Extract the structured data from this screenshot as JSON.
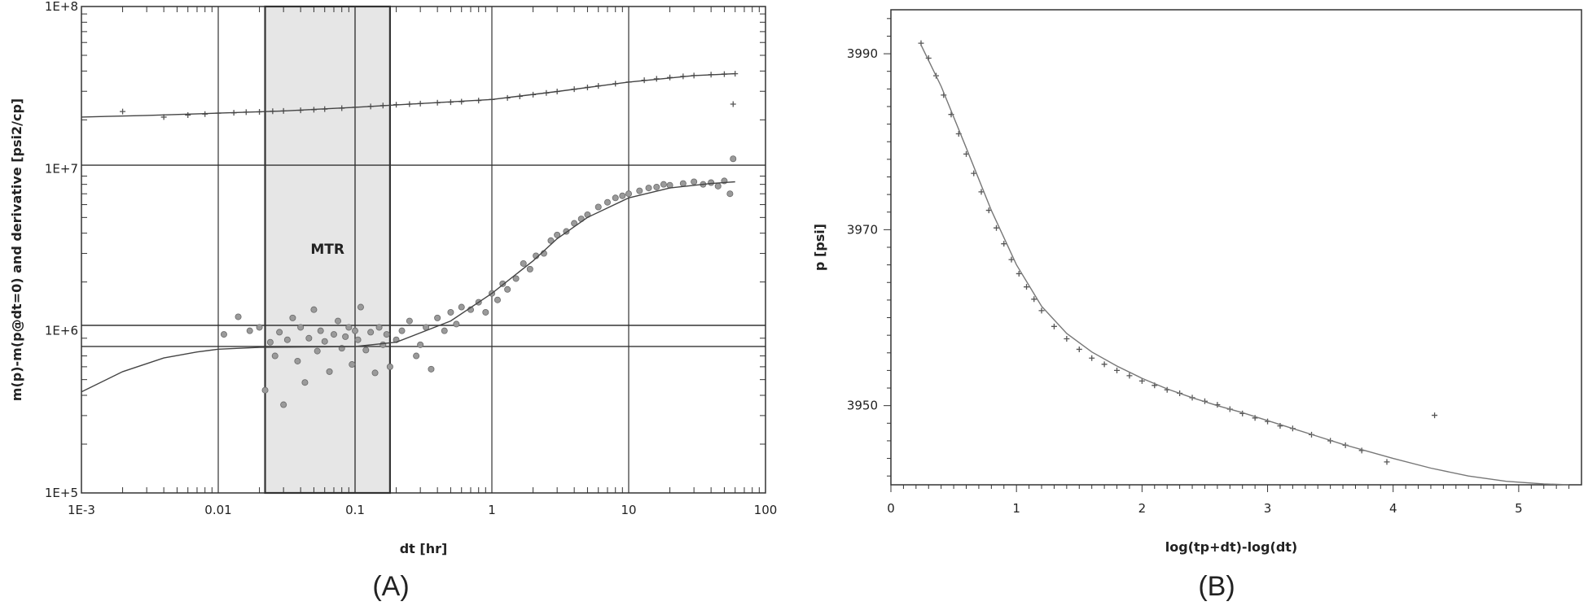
{
  "chart_data": [
    {
      "panel_label": "(A)",
      "type": "scatter",
      "x_scale": "log",
      "y_scale": "log",
      "xlabel": "dt [hr]",
      "ylabel": "m(p)-m(p@dt=0) and derivative [psi2/cp]",
      "xlim": [
        0.001,
        100
      ],
      "ylim": [
        100000,
        100000000
      ],
      "x_ticks": [
        {
          "value": 0.001,
          "label": "1E-3"
        },
        {
          "value": 0.01,
          "label": "0.01"
        },
        {
          "value": 0.1,
          "label": "0.1"
        },
        {
          "value": 1,
          "label": "1"
        },
        {
          "value": 10,
          "label": "10"
        },
        {
          "value": 100,
          "label": "100"
        }
      ],
      "y_ticks": [
        {
          "value": 100000,
          "label": "1E+5"
        },
        {
          "value": 1000000,
          "label": "1E+6"
        },
        {
          "value": 10000000,
          "label": "1E+7"
        },
        {
          "value": 100000000,
          "label": "1E+8"
        }
      ],
      "grid": true,
      "shaded_region": {
        "label": "MTR",
        "x_from": 0.022,
        "x_to": 0.18
      },
      "horizontal_lines": [
        10500000,
        1080000,
        800000
      ],
      "series": [
        {
          "marker": "plus",
          "points": [
            [
              0.002,
              22500000
            ],
            [
              0.004,
              20800000
            ],
            [
              0.006,
              21400000
            ],
            [
              0.008,
              21700000
            ],
            [
              0.01,
              22000000
            ],
            [
              0.013,
              22100000
            ],
            [
              0.016,
              22300000
            ],
            [
              0.02,
              22400000
            ],
            [
              0.025,
              22600000
            ],
            [
              0.03,
              22700000
            ],
            [
              0.04,
              22900000
            ],
            [
              0.05,
              23100000
            ],
            [
              0.06,
              23300000
            ],
            [
              0.08,
              23600000
            ],
            [
              0.1,
              23900000
            ],
            [
              0.13,
              24200000
            ],
            [
              0.16,
              24500000
            ],
            [
              0.2,
              24800000
            ],
            [
              0.25,
              25000000
            ],
            [
              0.3,
              25200000
            ],
            [
              0.4,
              25500000
            ],
            [
              0.5,
              25700000
            ],
            [
              0.6,
              25900000
            ],
            [
              0.8,
              26300000
            ],
            [
              1,
              26700000
            ],
            [
              1.3,
              27300000
            ],
            [
              1.6,
              27900000
            ],
            [
              2,
              28600000
            ],
            [
              2.5,
              29300000
            ],
            [
              3,
              29900000
            ],
            [
              4,
              30900000
            ],
            [
              5,
              31700000
            ],
            [
              6,
              32400000
            ],
            [
              8,
              33400000
            ],
            [
              10,
              34200000
            ],
            [
              13,
              35100000
            ],
            [
              16,
              35800000
            ],
            [
              20,
              36500000
            ],
            [
              25,
              37100000
            ],
            [
              30,
              37500000
            ],
            [
              40,
              38000000
            ],
            [
              50,
              38300000
            ],
            [
              60,
              38500000
            ],
            [
              58,
              25000000
            ]
          ]
        },
        {
          "marker": "plus",
          "fit_line": true,
          "points": [
            [
              0.001,
              20800000
            ],
            [
              0.003,
              21300000
            ],
            [
              0.01,
              22000000
            ],
            [
              0.03,
              22700000
            ],
            [
              0.1,
              23900000
            ],
            [
              0.3,
              25200000
            ],
            [
              1,
              26700000
            ],
            [
              3,
              29900000
            ],
            [
              10,
              34200000
            ],
            [
              30,
              37500000
            ],
            [
              60,
              38500000
            ]
          ]
        },
        {
          "marker": "circle",
          "points": [
            [
              0.011,
              950000
            ],
            [
              0.014,
              1220000
            ],
            [
              0.017,
              1000000
            ],
            [
              0.02,
              1050000
            ],
            [
              0.022,
              430000
            ],
            [
              0.024,
              850000
            ],
            [
              0.026,
              700000
            ],
            [
              0.028,
              980000
            ],
            [
              0.03,
              350000
            ],
            [
              0.032,
              880000
            ],
            [
              0.035,
              1200000
            ],
            [
              0.038,
              650000
            ],
            [
              0.04,
              1050000
            ],
            [
              0.043,
              480000
            ],
            [
              0.046,
              900000
            ],
            [
              0.05,
              1350000
            ],
            [
              0.053,
              750000
            ],
            [
              0.056,
              1000000
            ],
            [
              0.06,
              860000
            ],
            [
              0.065,
              560000
            ],
            [
              0.07,
              950000
            ],
            [
              0.075,
              1150000
            ],
            [
              0.08,
              780000
            ],
            [
              0.085,
              920000
            ],
            [
              0.09,
              1050000
            ],
            [
              0.095,
              620000
            ],
            [
              0.1,
              1000000
            ],
            [
              0.105,
              880000
            ],
            [
              0.11,
              1400000
            ],
            [
              0.12,
              760000
            ],
            [
              0.13,
              980000
            ],
            [
              0.14,
              550000
            ],
            [
              0.15,
              1050000
            ],
            [
              0.16,
              820000
            ],
            [
              0.17,
              950000
            ],
            [
              0.18,
              600000
            ],
            [
              0.2,
              880000
            ],
            [
              0.22,
              1000000
            ],
            [
              0.25,
              1150000
            ],
            [
              0.28,
              700000
            ],
            [
              0.3,
              820000
            ],
            [
              0.33,
              1050000
            ],
            [
              0.36,
              580000
            ],
            [
              0.4,
              1200000
            ],
            [
              0.45,
              1000000
            ],
            [
              0.5,
              1300000
            ],
            [
              0.55,
              1100000
            ],
            [
              0.6,
              1400000
            ],
            [
              0.7,
              1350000
            ],
            [
              0.8,
              1500000
            ],
            [
              0.9,
              1300000
            ],
            [
              1,
              1700000
            ],
            [
              1.1,
              1550000
            ],
            [
              1.2,
              1950000
            ],
            [
              1.3,
              1800000
            ],
            [
              1.5,
              2100000
            ],
            [
              1.7,
              2600000
            ],
            [
              1.9,
              2400000
            ],
            [
              2.1,
              2900000
            ],
            [
              2.4,
              3000000
            ],
            [
              2.7,
              3600000
            ],
            [
              3,
              3900000
            ],
            [
              3.5,
              4100000
            ],
            [
              4,
              4600000
            ],
            [
              4.5,
              4900000
            ],
            [
              5,
              5200000
            ],
            [
              6,
              5800000
            ],
            [
              7,
              6200000
            ],
            [
              8,
              6600000
            ],
            [
              9,
              6800000
            ],
            [
              10,
              7000000
            ],
            [
              12,
              7300000
            ],
            [
              14,
              7600000
            ],
            [
              16,
              7700000
            ],
            [
              18,
              8000000
            ],
            [
              20,
              7900000
            ],
            [
              25,
              8100000
            ],
            [
              30,
              8300000
            ],
            [
              35,
              8000000
            ],
            [
              40,
              8200000
            ],
            [
              45,
              7800000
            ],
            [
              50,
              8400000
            ],
            [
              55,
              7000000
            ],
            [
              58,
              11500000
            ]
          ]
        },
        {
          "marker": "none",
          "fit_line": true,
          "points": [
            [
              0.001,
              420000
            ],
            [
              0.002,
              560000
            ],
            [
              0.004,
              680000
            ],
            [
              0.007,
              740000
            ],
            [
              0.01,
              770000
            ],
            [
              0.02,
              790000
            ],
            [
              0.05,
              795000
            ],
            [
              0.1,
              800000
            ],
            [
              0.2,
              850000
            ],
            [
              0.5,
              1150000
            ],
            [
              1,
              1700000
            ],
            [
              2,
              2700000
            ],
            [
              3,
              3700000
            ],
            [
              5,
              5000000
            ],
            [
              10,
              6600000
            ],
            [
              20,
              7600000
            ],
            [
              40,
              8100000
            ],
            [
              60,
              8300000
            ]
          ]
        }
      ]
    },
    {
      "panel_label": "(B)",
      "type": "scatter",
      "xlabel": "log(tp+dt)-log(dt)",
      "ylabel": "p [psi]",
      "xlim": [
        0,
        5.5
      ],
      "ylim": [
        3941,
        3995
      ],
      "x_ticks": [
        {
          "value": 0,
          "label": "0"
        },
        {
          "value": 1,
          "label": "1"
        },
        {
          "value": 2,
          "label": "2"
        },
        {
          "value": 3,
          "label": "3"
        },
        {
          "value": 4,
          "label": "4"
        },
        {
          "value": 5,
          "label": "5"
        }
      ],
      "y_ticks": [
        {
          "value": 3950,
          "label": "3950"
        },
        {
          "value": 3970,
          "label": "3970"
        },
        {
          "value": 3990,
          "label": "3990"
        }
      ],
      "grid": false,
      "series": [
        {
          "marker": "plus",
          "points": [
            [
              0.24,
              3991.2
            ],
            [
              0.3,
              3989.5
            ],
            [
              0.36,
              3987.5
            ],
            [
              0.42,
              3985.3
            ],
            [
              0.48,
              3983.1
            ],
            [
              0.54,
              3980.9
            ],
            [
              0.6,
              3978.6
            ],
            [
              0.66,
              3976.4
            ],
            [
              0.72,
              3974.3
            ],
            [
              0.78,
              3972.2
            ],
            [
              0.84,
              3970.2
            ],
            [
              0.9,
              3968.4
            ],
            [
              0.96,
              3966.6
            ],
            [
              1.02,
              3965.0
            ],
            [
              1.08,
              3963.5
            ],
            [
              1.14,
              3962.1
            ],
            [
              1.2,
              3960.8
            ],
            [
              1.3,
              3959.0
            ],
            [
              1.4,
              3957.6
            ],
            [
              1.5,
              3956.4
            ],
            [
              1.6,
              3955.4
            ],
            [
              1.7,
              3954.7
            ],
            [
              1.8,
              3954.0
            ],
            [
              1.9,
              3953.4
            ],
            [
              2.0,
              3952.8
            ],
            [
              2.1,
              3952.3
            ],
            [
              2.2,
              3951.8
            ],
            [
              2.3,
              3951.4
            ],
            [
              2.4,
              3950.9
            ],
            [
              2.5,
              3950.5
            ],
            [
              2.6,
              3950.1
            ],
            [
              2.7,
              3949.6
            ],
            [
              2.8,
              3949.1
            ],
            [
              2.9,
              3948.6
            ],
            [
              3.0,
              3948.2
            ],
            [
              3.1,
              3947.7
            ],
            [
              3.2,
              3947.4
            ],
            [
              3.35,
              3946.7
            ],
            [
              3.5,
              3946.0
            ],
            [
              3.62,
              3945.5
            ],
            [
              3.75,
              3944.9
            ],
            [
              3.95,
              3943.6
            ],
            [
              4.33,
              3948.9
            ]
          ]
        },
        {
          "marker": "none",
          "fit_line": true,
          "points": [
            [
              0.24,
              3991.0
            ],
            [
              0.4,
              3986.3
            ],
            [
              0.6,
              3979.3
            ],
            [
              0.8,
              3972.2
            ],
            [
              1.0,
              3966.0
            ],
            [
              1.2,
              3961.3
            ],
            [
              1.4,
              3958.2
            ],
            [
              1.6,
              3956.1
            ],
            [
              1.8,
              3954.5
            ],
            [
              2.0,
              3953.1
            ],
            [
              2.2,
              3951.9
            ],
            [
              2.4,
              3950.9
            ],
            [
              2.6,
              3950.0
            ],
            [
              2.8,
              3949.2
            ],
            [
              3.0,
              3948.3
            ],
            [
              3.2,
              3947.4
            ],
            [
              3.4,
              3946.5
            ],
            [
              3.6,
              3945.6
            ],
            [
              3.8,
              3944.8
            ],
            [
              4.0,
              3944.0
            ],
            [
              4.3,
              3942.9
            ],
            [
              4.6,
              3942.0
            ],
            [
              4.9,
              3941.4
            ],
            [
              5.2,
              3941.1
            ],
            [
              5.4,
              3941.0
            ]
          ]
        }
      ]
    }
  ]
}
